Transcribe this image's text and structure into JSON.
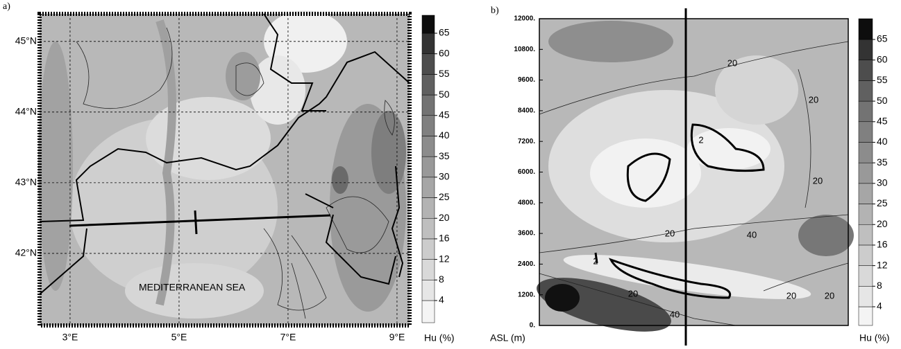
{
  "chart_data": [
    {
      "type": "contour-map",
      "label": "a)",
      "xlim": [
        2.44,
        9.23
      ],
      "ylim": [
        40.98,
        45.39
      ],
      "grid": true,
      "xticks": [
        {
          "value": 3,
          "label": "3°E"
        },
        {
          "value": 5,
          "label": "5°E"
        },
        {
          "value": 7,
          "label": "7°E"
        },
        {
          "value": 9,
          "label": "9°E"
        }
      ],
      "yticks": [
        {
          "value": 42,
          "label": "42°N"
        },
        {
          "value": 43,
          "label": "43°N"
        },
        {
          "value": 44,
          "label": "44°N"
        },
        {
          "value": 45,
          "label": "45°N"
        }
      ],
      "annotation": "MEDITERRANEAN SEA",
      "colorbar": {
        "label": "Hu (%)",
        "levels": [
          4,
          8,
          12,
          16,
          20,
          25,
          30,
          35,
          40,
          45,
          50,
          55,
          60,
          65
        ],
        "colors": [
          "#f4f4f4",
          "#e6e6e6",
          "#d9d9d9",
          "#cccccc",
          "#bfbfbf",
          "#b3b3b3",
          "#a6a6a6",
          "#999999",
          "#8c8c8c",
          "#808080",
          "#737373",
          "#606060",
          "#4d4d4d",
          "#333333",
          "#0d0d0d"
        ]
      }
    },
    {
      "type": "contour-section",
      "label": "b)",
      "ylabel": "ASL (m)",
      "ylim": [
        0,
        12000
      ],
      "yticks": [
        {
          "value": 0,
          "label": "0."
        },
        {
          "value": 1200,
          "label": "1200."
        },
        {
          "value": 2400,
          "label": "2400."
        },
        {
          "value": 3600,
          "label": "3600."
        },
        {
          "value": 4800,
          "label": "4800."
        },
        {
          "value": 6000,
          "label": "6000."
        },
        {
          "value": 7200,
          "label": "7200."
        },
        {
          "value": 8400,
          "label": "8400."
        },
        {
          "value": 9600,
          "label": "9600."
        },
        {
          "value": 10800,
          "label": "10800."
        },
        {
          "value": 12000,
          "label": "12000."
        }
      ],
      "contour_labels": [
        20,
        20,
        20,
        20,
        20,
        40,
        20,
        40,
        20,
        2,
        2
      ],
      "colorbar": {
        "label": "Hu (%)",
        "levels": [
          4,
          8,
          12,
          16,
          20,
          25,
          30,
          35,
          40,
          45,
          50,
          55,
          60,
          65
        ],
        "colors": [
          "#f4f4f4",
          "#e6e6e6",
          "#d9d9d9",
          "#cccccc",
          "#bfbfbf",
          "#b3b3b3",
          "#a6a6a6",
          "#999999",
          "#8c8c8c",
          "#808080",
          "#737373",
          "#606060",
          "#4d4d4d",
          "#333333",
          "#0d0d0d"
        ]
      }
    }
  ]
}
